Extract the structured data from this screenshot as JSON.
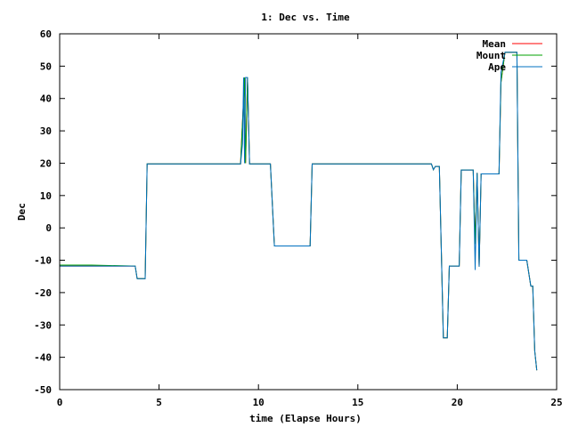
{
  "chart_data": {
    "type": "line",
    "title": "1: Dec vs. Time",
    "xlabel": "time (Elapse Hours)",
    "ylabel": "Dec",
    "xlim": [
      0,
      25
    ],
    "ylim": [
      -50,
      60
    ],
    "xticks": [
      "0",
      "5",
      "10",
      "15",
      "20",
      "25"
    ],
    "yticks": [
      "-50",
      "-40",
      "-30",
      "-20",
      "-10",
      "0",
      "10",
      "20",
      "30",
      "40",
      "50",
      "60"
    ],
    "grid": false,
    "legend_position": "top-right",
    "series": [
      {
        "name": "Mean",
        "color": "#ff0000",
        "points": [
          [
            0,
            -11.8
          ],
          [
            1.6,
            -11.8
          ],
          [
            3.8,
            -11.8
          ],
          [
            3.9,
            -15.7
          ],
          [
            4.3,
            -15.7
          ],
          [
            4.4,
            19.8
          ],
          [
            9.1,
            19.8
          ],
          [
            9.25,
            40
          ],
          [
            9.3,
            46.5
          ],
          [
            9.35,
            20
          ],
          [
            9.45,
            46.5
          ],
          [
            9.55,
            19.8
          ],
          [
            10.6,
            19.8
          ],
          [
            10.8,
            -5.6
          ],
          [
            12.6,
            -5.6
          ],
          [
            12.7,
            19.8
          ],
          [
            18.7,
            19.8
          ],
          [
            18.8,
            18
          ],
          [
            18.9,
            19
          ],
          [
            19.1,
            19
          ],
          [
            19.3,
            -34
          ],
          [
            19.5,
            -34
          ],
          [
            19.6,
            -11.8
          ],
          [
            20.1,
            -11.8
          ],
          [
            20.2,
            17.9
          ],
          [
            20.8,
            17.9
          ],
          [
            20.9,
            -5
          ],
          [
            21.0,
            17
          ],
          [
            21.1,
            -12
          ],
          [
            21.2,
            16.7
          ],
          [
            21.9,
            16.7
          ],
          [
            22.1,
            16.7
          ],
          [
            22.2,
            45
          ],
          [
            22.4,
            54.3
          ],
          [
            23.0,
            54.3
          ],
          [
            23.1,
            -10
          ],
          [
            23.5,
            -10
          ],
          [
            23.7,
            -18
          ],
          [
            23.8,
            -18
          ],
          [
            23.9,
            -38
          ],
          [
            24.0,
            -44
          ]
        ]
      },
      {
        "name": "Mount",
        "color": "#00a000",
        "points": [
          [
            0,
            -11.5
          ],
          [
            1.6,
            -11.5
          ],
          [
            3.8,
            -11.8
          ],
          [
            3.9,
            -15.7
          ],
          [
            4.3,
            -15.7
          ],
          [
            4.4,
            19.8
          ],
          [
            9.1,
            19.8
          ],
          [
            9.25,
            40
          ],
          [
            9.3,
            46.5
          ],
          [
            9.35,
            20
          ],
          [
            9.45,
            46.5
          ],
          [
            9.55,
            19.8
          ],
          [
            10.6,
            19.8
          ],
          [
            10.8,
            -5.6
          ],
          [
            12.6,
            -5.6
          ],
          [
            12.7,
            19.8
          ],
          [
            18.7,
            19.8
          ],
          [
            18.8,
            18
          ],
          [
            18.9,
            19
          ],
          [
            19.1,
            19
          ],
          [
            19.3,
            -34
          ],
          [
            19.5,
            -34
          ],
          [
            19.6,
            -11.8
          ],
          [
            20.1,
            -11.8
          ],
          [
            20.2,
            17.9
          ],
          [
            20.8,
            17.9
          ],
          [
            20.9,
            -5
          ],
          [
            21.0,
            17
          ],
          [
            21.1,
            -12
          ],
          [
            21.2,
            16.7
          ],
          [
            21.9,
            16.7
          ],
          [
            22.1,
            16.7
          ],
          [
            22.2,
            45
          ],
          [
            22.4,
            54.3
          ],
          [
            23.0,
            54.3
          ],
          [
            23.1,
            -10
          ],
          [
            23.5,
            -10
          ],
          [
            23.7,
            -18
          ],
          [
            23.8,
            -18
          ],
          [
            23.9,
            -38
          ],
          [
            24.0,
            -44
          ]
        ]
      },
      {
        "name": "Ape",
        "color": "#0070c0",
        "points": [
          [
            0,
            -11.8
          ],
          [
            1.6,
            -11.8
          ],
          [
            3.8,
            -11.8
          ],
          [
            3.9,
            -15.7
          ],
          [
            4.3,
            -15.7
          ],
          [
            4.4,
            19.8
          ],
          [
            9.1,
            19.8
          ],
          [
            9.2,
            26
          ],
          [
            9.25,
            46.5
          ],
          [
            9.3,
            20
          ],
          [
            9.35,
            46.5
          ],
          [
            9.45,
            46.5
          ],
          [
            9.55,
            19.8
          ],
          [
            10.6,
            19.8
          ],
          [
            10.8,
            -5.6
          ],
          [
            12.6,
            -5.6
          ],
          [
            12.7,
            19.8
          ],
          [
            18.7,
            19.8
          ],
          [
            18.8,
            18
          ],
          [
            18.9,
            19
          ],
          [
            19.1,
            19
          ],
          [
            19.3,
            -34
          ],
          [
            19.5,
            -34
          ],
          [
            19.6,
            -11.8
          ],
          [
            20.1,
            -11.8
          ],
          [
            20.2,
            17.9
          ],
          [
            20.8,
            17.9
          ],
          [
            20.9,
            -13
          ],
          [
            21.0,
            17
          ],
          [
            21.1,
            -12
          ],
          [
            21.2,
            16.7
          ],
          [
            21.9,
            16.7
          ],
          [
            22.1,
            16.7
          ],
          [
            22.2,
            48
          ],
          [
            22.4,
            54.3
          ],
          [
            23.0,
            54.3
          ],
          [
            23.1,
            -10
          ],
          [
            23.5,
            -10
          ],
          [
            23.7,
            -18
          ],
          [
            23.8,
            -18
          ],
          [
            23.9,
            -38
          ],
          [
            24.0,
            -44
          ]
        ]
      }
    ]
  }
}
